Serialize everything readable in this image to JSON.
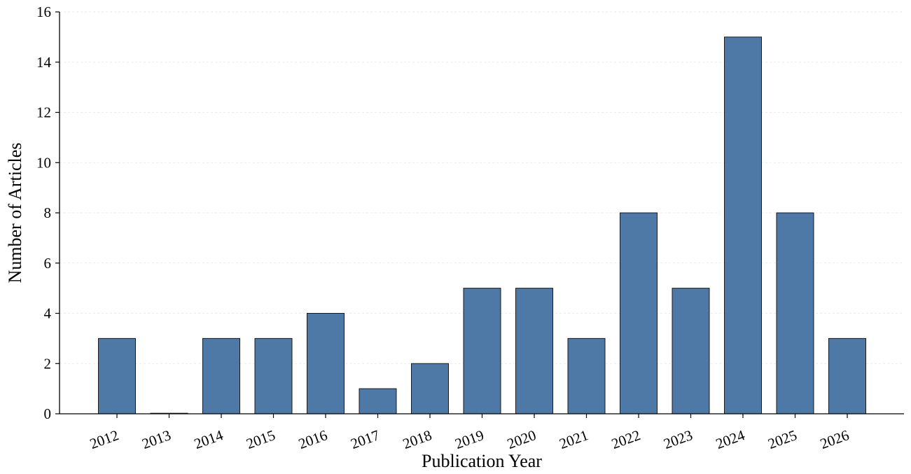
{
  "chart_data": {
    "type": "bar",
    "title": "",
    "xlabel": "Publication Year",
    "ylabel": "Number of Articles",
    "categories": [
      "2012",
      "2013",
      "2014",
      "2015",
      "2016",
      "2017",
      "2018",
      "2019",
      "2020",
      "2021",
      "2022",
      "2023",
      "2024",
      "2025",
      "2026"
    ],
    "values": [
      3,
      0,
      3,
      3,
      4,
      1,
      2,
      5,
      5,
      3,
      8,
      5,
      15,
      8,
      3
    ],
    "ylim": [
      0,
      16
    ],
    "yticks": [
      0,
      2,
      4,
      6,
      8,
      10,
      12,
      14,
      16
    ],
    "grid": "horizontal, light dashed",
    "legend": "none",
    "x_tick_rotation_deg": 20,
    "colors": {
      "bar_fill": "#4e78a6",
      "bar_edge": "#1a1a1a",
      "grid": "#e3e3e3",
      "axis": "#000000"
    }
  }
}
